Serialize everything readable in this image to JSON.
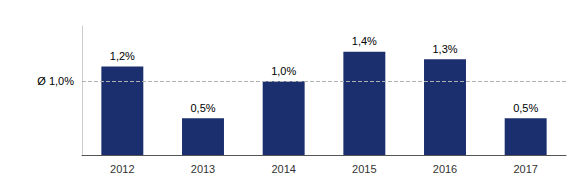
{
  "chart_data": {
    "type": "bar",
    "categories": [
      "2012",
      "2013",
      "2014",
      "2015",
      "2016",
      "2017"
    ],
    "values": [
      1.2,
      0.5,
      1.0,
      1.4,
      1.3,
      0.5
    ],
    "value_labels": [
      "1,2%",
      "0,5%",
      "1,0%",
      "1,4%",
      "1,3%",
      "0,5%"
    ],
    "color": "#1b2f6e",
    "ylim": [
      0,
      1.75
    ],
    "grid": false,
    "data_labels": true,
    "tick_labels": "x",
    "reference_line": {
      "value": 1.0,
      "label": "Ø 1,0%",
      "color": "#b0b0b0",
      "line_style": "dashed"
    }
  }
}
